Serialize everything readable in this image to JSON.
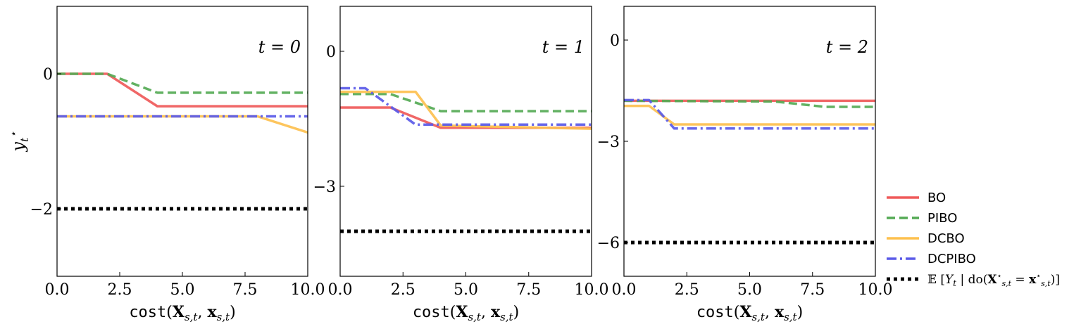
{
  "chart_data": [
    {
      "type": "line",
      "panel_label": "t = 0",
      "xlabel": "cost(X_{s,t}, x_{s,t})",
      "ylabel": "y_t^⋆",
      "xlim": [
        0,
        10
      ],
      "ylim": [
        -3,
        1
      ],
      "xticks": [
        0,
        2.5,
        5,
        7.5,
        10
      ],
      "xtick_labels": [
        "0.0",
        "2.5",
        "5.0",
        "7.5",
        "10.0"
      ],
      "yticks": [
        0,
        -2
      ],
      "ytick_labels": [
        "0",
        "−2"
      ],
      "series": [
        {
          "name": "BO",
          "x": [
            0,
            2,
            4,
            10
          ],
          "y": [
            0,
            0,
            -0.48,
            -0.48
          ]
        },
        {
          "name": "PIBO",
          "x": [
            0,
            2,
            4,
            10
          ],
          "y": [
            0,
            0,
            -0.28,
            -0.28
          ]
        },
        {
          "name": "DCBO",
          "x": [
            0,
            8,
            10
          ],
          "y": [
            -0.63,
            -0.63,
            -0.87
          ]
        },
        {
          "name": "DCPIBO",
          "x": [
            0,
            10
          ],
          "y": [
            -0.63,
            -0.63
          ]
        },
        {
          "name": "𝔼[Y_t | do(X*_{s,t} = x*_{s,t})]",
          "x": [
            0,
            10
          ],
          "y": [
            -2,
            -2
          ]
        }
      ]
    },
    {
      "type": "line",
      "panel_label": "t = 1",
      "xlabel": "cost(X_{s,t}, x_{s,t})",
      "xlim": [
        0,
        10
      ],
      "ylim": [
        -5,
        1
      ],
      "xticks": [
        0,
        2.5,
        5,
        7.5,
        10
      ],
      "xtick_labels": [
        "0.0",
        "2.5",
        "5.0",
        "7.5",
        "10.0"
      ],
      "yticks": [
        0,
        -3
      ],
      "ytick_labels": [
        "0",
        "−3"
      ],
      "series": [
        {
          "name": "BO",
          "x": [
            0,
            2,
            4,
            10
          ],
          "y": [
            -1.25,
            -1.25,
            -1.7,
            -1.7
          ]
        },
        {
          "name": "PIBO",
          "x": [
            0,
            2,
            4,
            10
          ],
          "y": [
            -0.95,
            -0.95,
            -1.33,
            -1.33
          ]
        },
        {
          "name": "DCBO",
          "x": [
            0,
            3,
            4,
            10
          ],
          "y": [
            -0.9,
            -0.9,
            -1.65,
            -1.72
          ]
        },
        {
          "name": "DCPIBO",
          "x": [
            0,
            1,
            3,
            10
          ],
          "y": [
            -0.82,
            -0.82,
            -1.63,
            -1.63
          ]
        },
        {
          "name": "𝔼[Y_t | do(X*_{s,t} = x*_{s,t})]",
          "x": [
            0,
            10
          ],
          "y": [
            -4,
            -4
          ]
        }
      ]
    },
    {
      "type": "line",
      "panel_label": "t = 2",
      "xlabel": "cost(X_{s,t}, x_{s,t})",
      "xlim": [
        0,
        10
      ],
      "ylim": [
        -7,
        1
      ],
      "xticks": [
        0,
        2.5,
        5,
        7.5,
        10
      ],
      "xtick_labels": [
        "0.0",
        "2.5",
        "5.0",
        "7.5",
        "10.0"
      ],
      "yticks": [
        0,
        -3,
        -6
      ],
      "ytick_labels": [
        "0",
        "−3",
        "−6"
      ],
      "series": [
        {
          "name": "BO",
          "x": [
            0,
            10
          ],
          "y": [
            -1.8,
            -1.8
          ]
        },
        {
          "name": "PIBO",
          "x": [
            0,
            6,
            8,
            10
          ],
          "y": [
            -1.8,
            -1.82,
            -1.98,
            -1.98
          ]
        },
        {
          "name": "DCBO",
          "x": [
            0,
            1,
            2,
            10
          ],
          "y": [
            -1.95,
            -1.95,
            -2.5,
            -2.5
          ]
        },
        {
          "name": "DCPIBO",
          "x": [
            0,
            1,
            2,
            10
          ],
          "y": [
            -1.78,
            -1.78,
            -2.62,
            -2.62
          ]
        },
        {
          "name": "𝔼[Y_t | do(X*_{s,t} = x*_{s,t})]",
          "x": [
            0,
            10
          ],
          "y": [
            -6,
            -6
          ]
        }
      ]
    }
  ],
  "legend": {
    "placement": "right",
    "entries": [
      {
        "label": "BO",
        "color": "#ef5a5a",
        "style": "solid"
      },
      {
        "label": "PIBO",
        "color": "#55aa55",
        "style": "dashed"
      },
      {
        "label": "DCBO",
        "color": "#fdc04f",
        "style": "solid"
      },
      {
        "label": "DCPIBO",
        "color": "#5a5ae8",
        "style": "dashdot"
      },
      {
        "label": "𝔼[Y_t | do(X*_{s,t} = x*_{s,t})]",
        "color": "#000000",
        "style": "dotted"
      }
    ]
  }
}
